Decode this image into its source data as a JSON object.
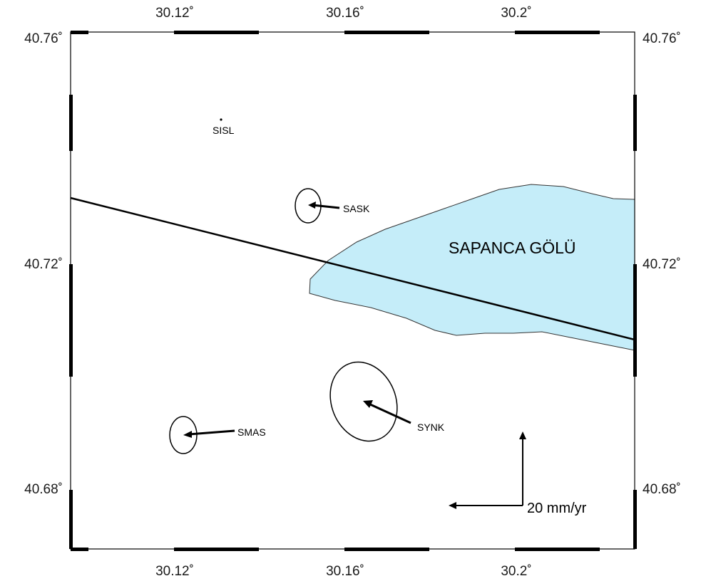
{
  "map": {
    "axes": {
      "x_ticks": [
        "30.12˚",
        "30.16˚",
        "30.2˚"
      ],
      "y_ticks": [
        "40.76˚",
        "40.72˚",
        "40.68˚"
      ],
      "x_tick_values": [
        30.12,
        30.16,
        30.2
      ],
      "y_tick_values": [
        40.76,
        40.72,
        40.68
      ],
      "lon_range": [
        30.0957,
        30.2488
      ],
      "lat_range": [
        40.6645,
        40.7612
      ]
    },
    "lake": {
      "name": "SAPANCA GÖLÜ",
      "fill": "#c5edf9"
    },
    "fault_line_color": "#000000",
    "stations": [
      {
        "id": "sisl",
        "name": "SISL",
        "lon": 30.128,
        "lat": 40.7465,
        "velocity": null
      },
      {
        "id": "sask",
        "name": "SASK",
        "lon": 30.151,
        "lat": 40.7305,
        "velocity": {
          "east_mm_yr": -5,
          "north_mm_yr": 0.5
        }
      },
      {
        "id": "smas",
        "name": "SMAS",
        "lon": 30.122,
        "lat": 40.6895,
        "velocity": {
          "east_mm_yr": -12,
          "north_mm_yr": 1
        }
      },
      {
        "id": "synk",
        "name": "SYNK",
        "lon": 30.1645,
        "lat": 40.6945,
        "velocity": {
          "east_mm_yr": 9,
          "north_mm_yr": -4
        }
      }
    ],
    "scale_arrows": {
      "label": "20 mm/yr",
      "value_mm_yr": 20
    }
  }
}
